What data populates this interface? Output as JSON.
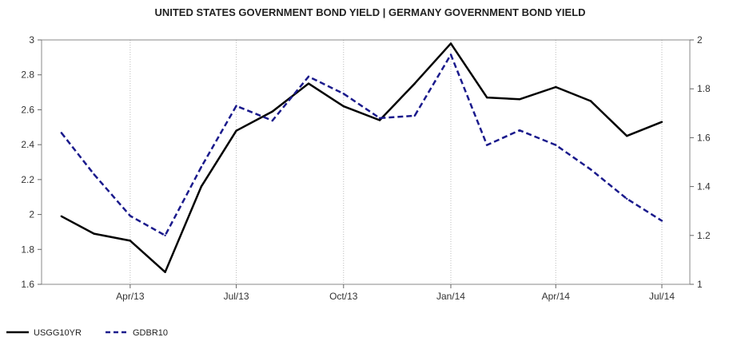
{
  "chart_data": {
    "type": "line",
    "title": "UNITED STATES GOVERNMENT BOND YIELD |  GERMANY GOVERNMENT BOND YIELD",
    "x": [
      "2013-02-01",
      "2013-03-01",
      "2013-04-01",
      "2013-05-01",
      "2013-06-01",
      "2013-07-01",
      "2013-08-01",
      "2013-09-01",
      "2013-10-01",
      "2013-11-01",
      "2013-12-01",
      "2014-01-01",
      "2014-02-01",
      "2014-03-01",
      "2014-04-01",
      "2014-05-01",
      "2014-06-01",
      "2014-07-01"
    ],
    "x_ticks": [
      "Apr/13",
      "Jul/13",
      "Oct/13",
      "Jan/14",
      "Apr/14",
      "Jul/14"
    ],
    "y_left": {
      "range": [
        1.6,
        3.0
      ],
      "ticks": [
        "1.6",
        "1.8",
        "2",
        "2.2",
        "2.4",
        "2.6",
        "2.8",
        "3"
      ]
    },
    "y_right": {
      "range": [
        1.0,
        2.0
      ],
      "ticks": [
        "1",
        "1.2",
        "1.4",
        "1.6",
        "1.8",
        "2"
      ]
    },
    "grid": "vertical",
    "legend_position": "bottom-left",
    "series": [
      {
        "name": "USGG10YR",
        "axis": "left",
        "color": "#000000",
        "style": "solid",
        "values": [
          1.99,
          1.89,
          1.85,
          1.67,
          2.16,
          2.48,
          2.59,
          2.75,
          2.62,
          2.54,
          2.75,
          2.98,
          2.67,
          2.66,
          2.73,
          2.65,
          2.45,
          2.53
        ]
      },
      {
        "name": "GDBR10",
        "axis": "right",
        "color": "#1a1a8c",
        "style": "dashed",
        "values": [
          1.62,
          1.45,
          1.28,
          1.2,
          1.48,
          1.73,
          1.67,
          1.85,
          1.78,
          1.68,
          1.69,
          1.94,
          1.57,
          1.63,
          1.57,
          1.47,
          1.35,
          1.26
        ]
      }
    ]
  }
}
